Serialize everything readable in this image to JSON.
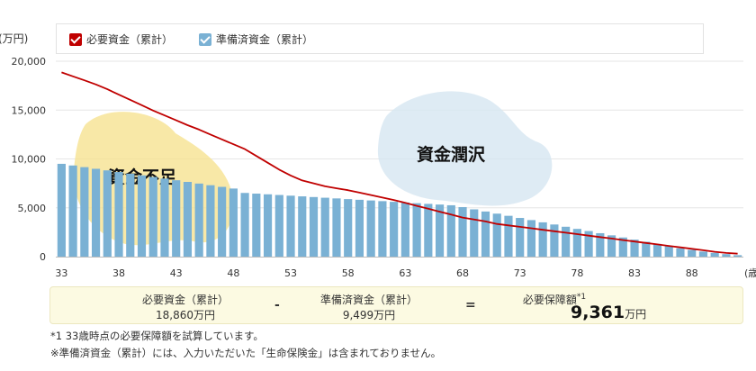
{
  "unit_label": "(万円)",
  "x_axis_suffix": "(歳",
  "legend": [
    {
      "label": "必要資金（累計）",
      "color": "#c00000"
    },
    {
      "label": "準備済資金（累計）",
      "color": "#7ab1d4"
    }
  ],
  "annotations": {
    "shortage": "資金不足",
    "surplus": "資金潤沢"
  },
  "summary": {
    "required_label": "必要資金（累計）",
    "required_value": "18,860",
    "prepared_label": "準備済資金（累計）",
    "prepared_value": "9,499",
    "unit": "万円",
    "minus": "-",
    "equals": "=",
    "result_label": "必要保障額",
    "result_note": "*1",
    "result_value": "9,361",
    "result_unit": "万円"
  },
  "notes": [
    "*1 33歳時点の必要保障額を試算しています。",
    "※準備済資金（累計）には、入力いただいた「生命保険金」は含まれておりません。"
  ],
  "chart_data": {
    "type": "bar",
    "x": [
      33,
      34,
      35,
      36,
      37,
      38,
      39,
      40,
      41,
      42,
      43,
      44,
      45,
      46,
      47,
      48,
      49,
      50,
      51,
      52,
      53,
      54,
      55,
      56,
      57,
      58,
      59,
      60,
      61,
      62,
      63,
      64,
      65,
      66,
      67,
      68,
      69,
      70,
      71,
      72,
      73,
      74,
      75,
      76,
      77,
      78,
      79,
      80,
      81,
      82,
      83,
      84,
      85,
      86,
      87,
      88,
      89,
      90,
      91,
      92
    ],
    "xticks": [
      "33",
      "38",
      "43",
      "48",
      "53",
      "58",
      "63",
      "68",
      "73",
      "78",
      "83",
      "88"
    ],
    "yticks": [
      "0",
      "5,000",
      "10,000",
      "15,000",
      "20,000"
    ],
    "ylim": [
      0,
      20000
    ],
    "series": [
      {
        "name": "準備済資金（累計）",
        "type": "bar",
        "color": "#7ab1d4",
        "values": [
          9499,
          9330,
          9160,
          8990,
          8830,
          8660,
          8490,
          8320,
          8150,
          7990,
          7820,
          7650,
          7480,
          7310,
          7140,
          6970,
          6520,
          6450,
          6380,
          6310,
          6240,
          6170,
          6100,
          6030,
          5960,
          5890,
          5820,
          5750,
          5680,
          5610,
          5540,
          5470,
          5400,
          5330,
          5260,
          5070,
          4840,
          4620,
          4400,
          4180,
          3960,
          3740,
          3510,
          3290,
          3060,
          2840,
          2620,
          2400,
          2180,
          1960,
          1740,
          1520,
          1300,
          1080,
          860,
          690,
          520,
          390,
          260,
          150
        ]
      },
      {
        "name": "必要資金（累計）",
        "type": "line",
        "color": "#c00000",
        "values": [
          18860,
          18450,
          18050,
          17620,
          17130,
          16580,
          16050,
          15500,
          14950,
          14450,
          13950,
          13460,
          13000,
          12500,
          12000,
          11500,
          11000,
          10300,
          9600,
          8900,
          8300,
          7800,
          7500,
          7200,
          7000,
          6800,
          6550,
          6300,
          6050,
          5800,
          5500,
          5200,
          4900,
          4600,
          4300,
          4000,
          3800,
          3600,
          3350,
          3200,
          3050,
          2900,
          2750,
          2600,
          2450,
          2300,
          2150,
          2000,
          1850,
          1700,
          1550,
          1400,
          1250,
          1100,
          950,
          800,
          650,
          500,
          380,
          300
        ]
      }
    ]
  }
}
